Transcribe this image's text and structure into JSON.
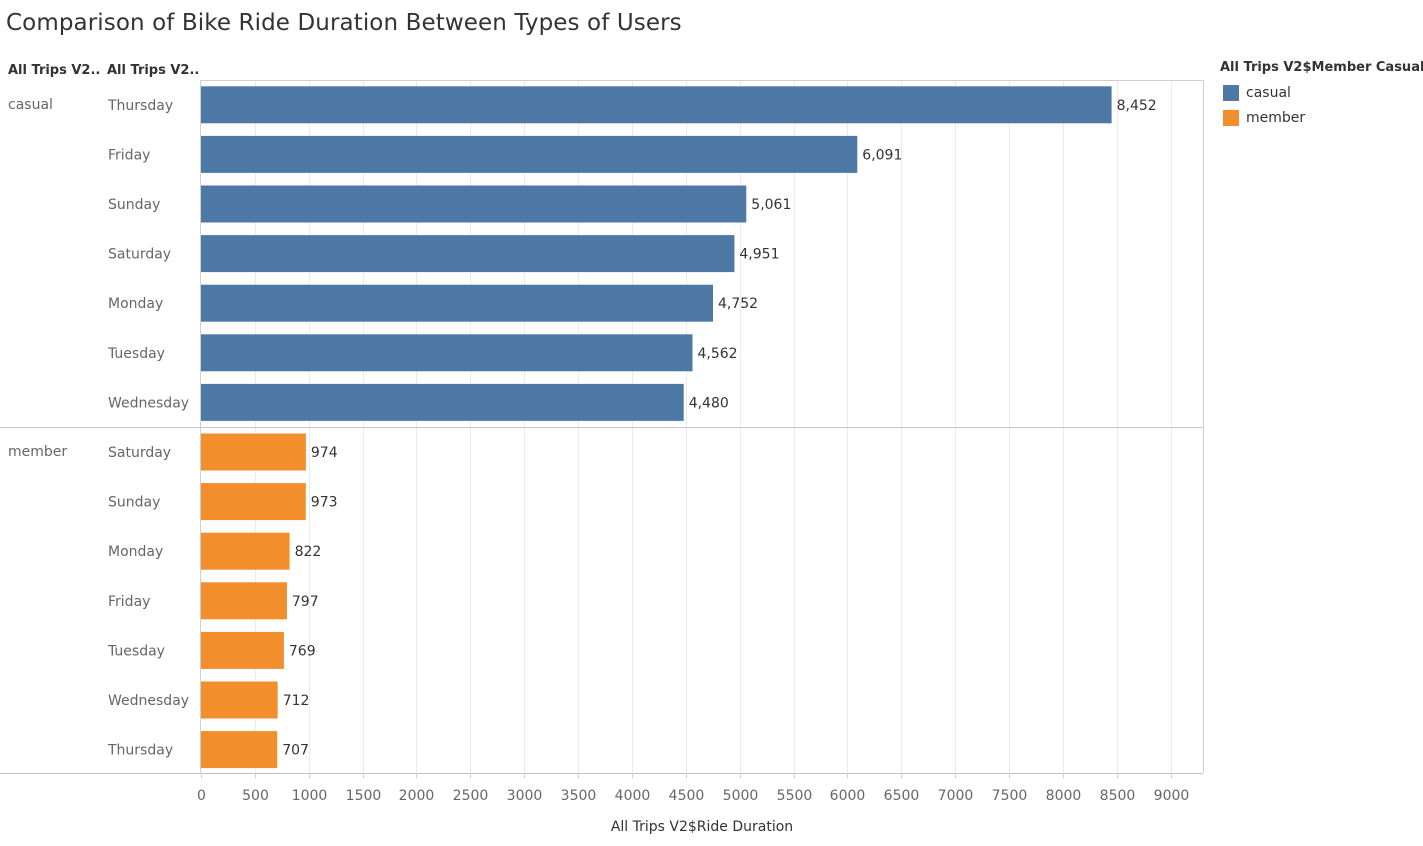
{
  "title": "Comparison of Bike Ride Duration Between Types of Users",
  "row_headers": [
    "All Trips V2..",
    "All Trips V2.."
  ],
  "legend": {
    "title": "All Trips V2$Member Casual",
    "items": [
      {
        "label": "casual",
        "color": "#4e79a7"
      },
      {
        "label": "member",
        "color": "#f28e2b"
      }
    ]
  },
  "chart_data": {
    "type": "bar",
    "orientation": "horizontal",
    "xlabel": "All Trips V2$Ride Duration",
    "xlim": [
      0,
      9300
    ],
    "x_ticks": [
      0,
      500,
      1000,
      1500,
      2000,
      2500,
      3000,
      3500,
      4000,
      4500,
      5000,
      5500,
      6000,
      6500,
      7000,
      7500,
      8000,
      8500,
      9000
    ],
    "grid": true,
    "legend_position": "top-right",
    "groups": [
      {
        "name": "casual",
        "color": "#4e79a7",
        "bars": [
          {
            "category": "Thursday",
            "value": 8452,
            "label": "8,452"
          },
          {
            "category": "Friday",
            "value": 6091,
            "label": "6,091"
          },
          {
            "category": "Sunday",
            "value": 5061,
            "label": "5,061"
          },
          {
            "category": "Saturday",
            "value": 4951,
            "label": "4,951"
          },
          {
            "category": "Monday",
            "value": 4752,
            "label": "4,752"
          },
          {
            "category": "Tuesday",
            "value": 4562,
            "label": "4,562"
          },
          {
            "category": "Wednesday",
            "value": 4480,
            "label": "4,480"
          }
        ]
      },
      {
        "name": "member",
        "color": "#f28e2b",
        "bars": [
          {
            "category": "Saturday",
            "value": 974,
            "label": "974"
          },
          {
            "category": "Sunday",
            "value": 973,
            "label": "973"
          },
          {
            "category": "Monday",
            "value": 822,
            "label": "822"
          },
          {
            "category": "Friday",
            "value": 797,
            "label": "797"
          },
          {
            "category": "Tuesday",
            "value": 769,
            "label": "769"
          },
          {
            "category": "Wednesday",
            "value": 712,
            "label": "712"
          },
          {
            "category": "Thursday",
            "value": 707,
            "label": "707"
          }
        ]
      }
    ]
  }
}
